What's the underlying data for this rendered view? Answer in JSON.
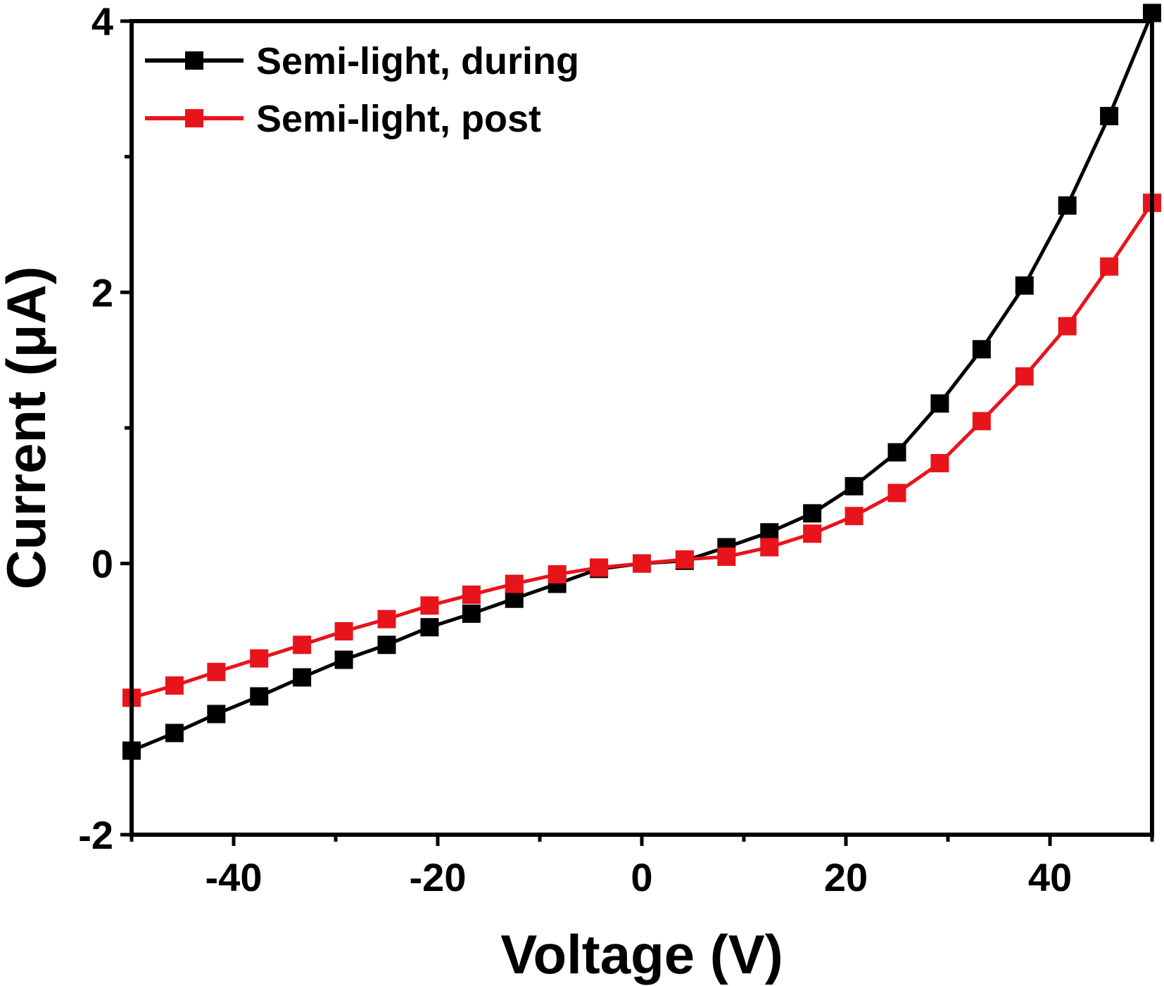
{
  "chart_data": {
    "type": "line",
    "xlabel": "Voltage (V)",
    "ylabel": "Current (μA)",
    "xlim": [
      -50,
      50
    ],
    "ylim": [
      -2,
      4
    ],
    "x_ticks": [
      -40,
      -20,
      0,
      20,
      40
    ],
    "y_ticks": [
      -2,
      0,
      2,
      4
    ],
    "x_tick_labels": [
      "-40",
      "-20",
      "0",
      "20",
      "40"
    ],
    "y_tick_labels": [
      "-2",
      "0",
      "2",
      "4"
    ],
    "legend_position": "top-left",
    "grid": false,
    "series": [
      {
        "name": "Semi-light, during",
        "color": "#000000",
        "marker": "square",
        "x": [
          -50,
          -45.8,
          -41.7,
          -37.5,
          -33.3,
          -29.2,
          -25,
          -20.8,
          -16.7,
          -12.5,
          -8.3,
          -4.2,
          0,
          4.2,
          8.3,
          12.5,
          16.7,
          20.8,
          25,
          29.2,
          33.3,
          37.5,
          41.7,
          45.8,
          50
        ],
        "y": [
          -1.38,
          -1.25,
          -1.11,
          -0.98,
          -0.84,
          -0.71,
          -0.6,
          -0.47,
          -0.37,
          -0.26,
          -0.15,
          -0.04,
          0,
          0.02,
          0.12,
          0.23,
          0.37,
          0.57,
          0.82,
          1.18,
          1.58,
          2.05,
          2.64,
          3.3,
          4.06
        ]
      },
      {
        "name": "Semi-light, post",
        "color": "#e8141b",
        "marker": "square",
        "x": [
          -50,
          -45.8,
          -41.7,
          -37.5,
          -33.3,
          -29.2,
          -25,
          -20.8,
          -16.7,
          -12.5,
          -8.3,
          -4.2,
          0,
          4.2,
          8.3,
          12.5,
          16.7,
          20.8,
          25,
          29.2,
          33.3,
          37.5,
          41.7,
          45.8,
          50
        ],
        "y": [
          -0.99,
          -0.9,
          -0.8,
          -0.7,
          -0.6,
          -0.5,
          -0.41,
          -0.31,
          -0.23,
          -0.15,
          -0.08,
          -0.03,
          0,
          0.03,
          0.05,
          0.12,
          0.22,
          0.35,
          0.52,
          0.74,
          1.05,
          1.38,
          1.75,
          2.19,
          2.66
        ]
      }
    ]
  }
}
